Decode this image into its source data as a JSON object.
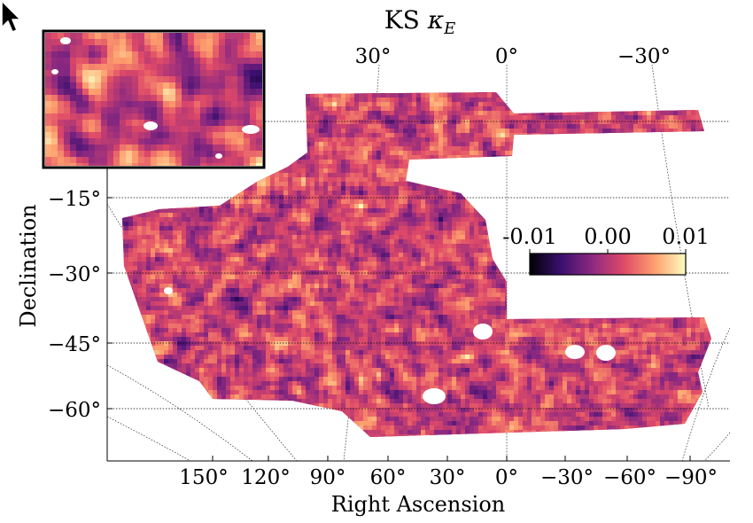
{
  "chart_data": {
    "type": "heatmap",
    "title": "KS κE",
    "xlabel": "Right Ascension",
    "ylabel": "Declination",
    "projection": "mollweide-style sky map",
    "grid": true,
    "x_ticks_bottom": [
      "150°",
      "120°",
      "90°",
      "60°",
      "30°",
      "0°",
      "−30°",
      "−60°",
      "−90°"
    ],
    "x_ticks_top": [
      "30°",
      "0°",
      "−30°"
    ],
    "y_ticks": [
      "−15°",
      "−30°",
      "−45°",
      "−60°"
    ],
    "colorbar": {
      "colormap": "magma",
      "min": -0.01,
      "max": 0.01,
      "tick_labels": [
        "-0.01",
        "0.00",
        "0.01"
      ],
      "placement": "center-right inside axes"
    },
    "inset": {
      "placement": "top-left",
      "content": "zoomed region of the convergence map"
    }
  },
  "colors": {
    "magma_stops": [
      "#000004",
      "#3b0f70",
      "#8c2981",
      "#de4968",
      "#fe9f6d",
      "#fcfdbf"
    ],
    "mask": "#ffffff",
    "frame": "#000000"
  },
  "ui": {
    "cursor": "mouse-pointer-icon"
  }
}
